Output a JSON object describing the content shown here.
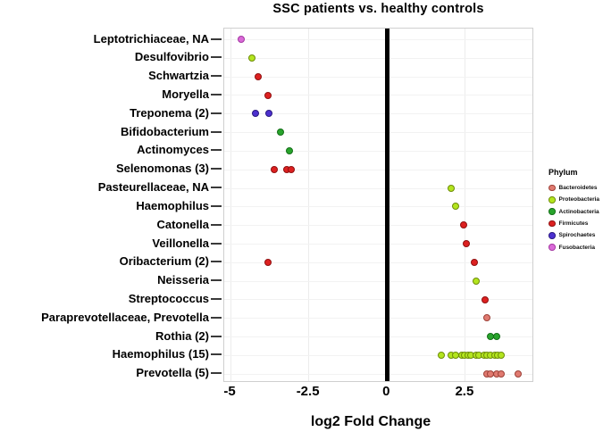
{
  "figure": {
    "title": "SSC patients vs. healthy controls",
    "xlabel": "log2 Fold Change",
    "legend_title": "Phylum"
  },
  "chart_data": {
    "type": "scatter",
    "title": "SSC patients vs. healthy controls",
    "xlabel": "log2 Fold Change",
    "ylabel": "",
    "xlim": [
      -5.2,
      4.7
    ],
    "x_ticks": [
      -5,
      -2.5,
      0,
      2.5
    ],
    "x_tick_labels": [
      "-5",
      "-2.5",
      "0",
      "2.5"
    ],
    "grid": true,
    "zero_line_x": 0,
    "legend": {
      "title": "Phylum",
      "position": "right"
    },
    "phyla": [
      {
        "name": "Bacteroidetes",
        "fill": "#e07a70",
        "border": "#9c4037"
      },
      {
        "name": "Proteobacteria",
        "fill": "#b3e51e",
        "border": "#6e8c0a"
      },
      {
        "name": "Actinobacteria",
        "fill": "#28a42c",
        "border": "#146e18"
      },
      {
        "name": "Firmicutes",
        "fill": "#dd2020",
        "border": "#8f1010"
      },
      {
        "name": "Spirochaetes",
        "fill": "#4c30cf",
        "border": "#2a1a80"
      },
      {
        "name": "Fusobacteria",
        "fill": "#da6ad8",
        "border": "#a437a2"
      }
    ],
    "rows": [
      {
        "label": "Leptotrichiaceae, NA",
        "phylum": "Fusobacteria",
        "values": [
          -4.65
        ]
      },
      {
        "label": "Desulfovibrio",
        "phylum": "Proteobacteria",
        "values": [
          -4.3
        ]
      },
      {
        "label": "Schwartzia",
        "phylum": "Firmicutes",
        "values": [
          -4.1
        ]
      },
      {
        "label": "Moryella",
        "phylum": "Firmicutes",
        "values": [
          -3.8
        ]
      },
      {
        "label": "Treponema (2)",
        "phylum": "Spirochaetes",
        "values": [
          -4.2,
          -3.75
        ]
      },
      {
        "label": "Bifidobacterium",
        "phylum": "Actinobacteria",
        "values": [
          -3.4
        ]
      },
      {
        "label": "Actinomyces",
        "phylum": "Actinobacteria",
        "values": [
          -3.1
        ]
      },
      {
        "label": "Selenomonas (3)",
        "phylum": "Firmicutes",
        "values": [
          -3.6,
          -3.2,
          -3.05
        ]
      },
      {
        "label": "Pasteurellaceae, NA",
        "phylum": "Proteobacteria",
        "values": [
          2.05
        ]
      },
      {
        "label": "Haemophilus",
        "phylum": "Proteobacteria",
        "values": [
          2.2
        ]
      },
      {
        "label": "Catonella",
        "phylum": "Firmicutes",
        "values": [
          2.45
        ]
      },
      {
        "label": "Veillonella",
        "phylum": "Firmicutes",
        "values": [
          2.55
        ]
      },
      {
        "label": "Oribacterium (2)",
        "phylum": "Firmicutes",
        "values": [
          -3.8,
          2.8
        ]
      },
      {
        "label": "Neisseria",
        "phylum": "Proteobacteria",
        "values": [
          2.85
        ]
      },
      {
        "label": "Streptococcus",
        "phylum": "Firmicutes",
        "values": [
          3.15
        ]
      },
      {
        "label": "Paraprevotellaceae, Prevotella",
        "phylum": "Bacteroidetes",
        "values": [
          3.2
        ]
      },
      {
        "label": "Rothia (2)",
        "phylum": "Actinobacteria",
        "values": [
          3.3,
          3.5
        ]
      },
      {
        "label": "Haemophilus (15)",
        "phylum": "Proteobacteria",
        "values": [
          1.75,
          2.05,
          2.2,
          2.4,
          2.5,
          2.6,
          2.7,
          2.85,
          2.95,
          3.1,
          3.2,
          3.3,
          3.45,
          3.55,
          3.65
        ]
      },
      {
        "label": "Prevotella (5)",
        "phylum": "Bacteroidetes",
        "values": [
          3.2,
          3.3,
          3.5,
          3.65,
          4.2
        ]
      }
    ]
  }
}
